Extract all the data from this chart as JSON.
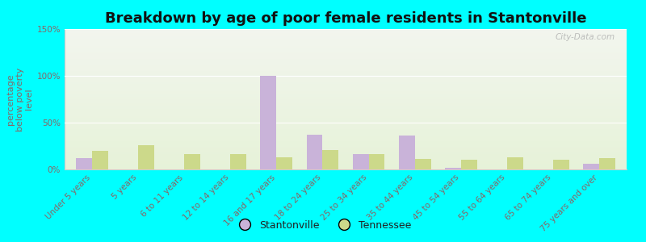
{
  "title": "Breakdown by age of poor female residents in Stantonville",
  "ylabel": "percentage\nbelow poverty\nlevel",
  "categories": [
    "Under 5 years",
    "5 years",
    "6 to 11 years",
    "12 to 14 years",
    "16 and 17 years",
    "18 to 24 years",
    "25 to 34 years",
    "35 to 44 years",
    "45 to 54 years",
    "55 to 64 years",
    "65 to 74 years",
    "75 years and over"
  ],
  "stantonville": [
    12,
    0,
    0,
    0,
    100,
    37,
    16,
    36,
    2,
    0,
    0,
    6
  ],
  "tennessee": [
    20,
    26,
    16,
    16,
    13,
    21,
    16,
    11,
    10,
    13,
    10,
    12
  ],
  "stantonville_color": "#c9b3d9",
  "tennessee_color": "#ccd98a",
  "bg_color": "#00ffff",
  "plot_bg_top": "#f2f5ee",
  "plot_bg_bottom": "#e6f2d8",
  "ylim": [
    0,
    150
  ],
  "yticks": [
    0,
    50,
    100,
    150
  ],
  "ytick_labels": [
    "0%",
    "50%",
    "100%",
    "150%"
  ],
  "bar_width": 0.35,
  "title_fontsize": 13,
  "axis_label_fontsize": 8,
  "tick_fontsize": 7.5,
  "legend_fontsize": 9,
  "tick_color": "#886666",
  "ylabel_color": "#886666",
  "watermark": "City-Data.com"
}
